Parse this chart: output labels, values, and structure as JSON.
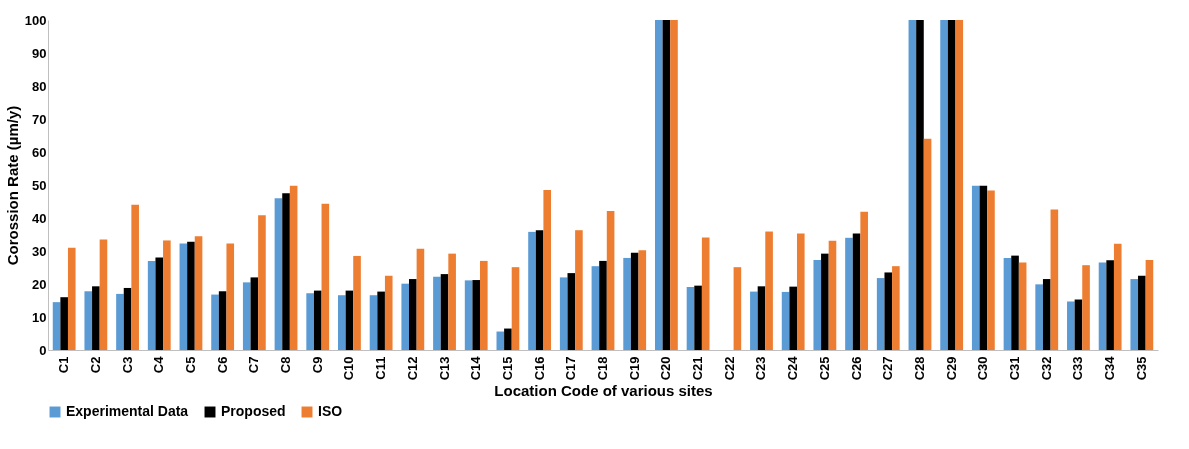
{
  "chart_data": {
    "type": "bar",
    "xlabel": "Location Code of various sites",
    "ylabel": "Corossion Rate (µm/y)",
    "categories": [
      "C1",
      "C2",
      "C3",
      "C4",
      "C5",
      "C6",
      "C7",
      "C8",
      "C9",
      "C10",
      "C11",
      "C12",
      "C13",
      "C14",
      "C15",
      "C16",
      "C17",
      "C18",
      "C19",
      "C20",
      "C21",
      "C22",
      "C23",
      "C24",
      "C25",
      "C26",
      "C27",
      "C28",
      "C29",
      "C30",
      "C31",
      "C32",
      "C33",
      "C34",
      "C35"
    ],
    "series": [
      {
        "name": "Experimental Data",
        "color": "#5b9bd5",
        "values": [
          14.5,
          17.8,
          17,
          27,
          32.3,
          16.8,
          20.5,
          46,
          17.2,
          16.6,
          16.6,
          20.1,
          22.2,
          21.1,
          5.6,
          35.8,
          22,
          25.4,
          27.9,
          100,
          19.1,
          null,
          17.7,
          17.6,
          27.3,
          34,
          21.8,
          100,
          100,
          49.8,
          27.9,
          19.9,
          14.7,
          26.5,
          21.5
        ]
      },
      {
        "name": "Proposed",
        "color": "#000000",
        "values": [
          16,
          19.3,
          18.8,
          28,
          32.8,
          17.8,
          22,
          47.5,
          18,
          18,
          17.7,
          21.5,
          23,
          21.2,
          6.5,
          36.3,
          23.3,
          27,
          29.5,
          100,
          19.5,
          null,
          19.3,
          19.2,
          29.2,
          35.3,
          23.5,
          100,
          100,
          49.8,
          28.6,
          21.5,
          15.3,
          27.2,
          22.5
        ]
      },
      {
        "name": "ISO",
        "color": "#ed7d31",
        "values": [
          31,
          33.5,
          44,
          33.2,
          34.5,
          32.3,
          40.8,
          49.8,
          44.3,
          28.5,
          22.5,
          30.7,
          29.2,
          27,
          25.1,
          48.5,
          36.3,
          42.1,
          30.2,
          100,
          34.1,
          25.1,
          35.9,
          35.3,
          33.1,
          41.9,
          25.4,
          64,
          100,
          48.3,
          26.5,
          42.6,
          25.7,
          32.2,
          27.3
        ]
      }
    ],
    "ylim": [
      0,
      100
    ],
    "yticks": [
      0,
      10,
      20,
      30,
      40,
      50,
      60,
      70,
      80,
      90,
      100
    ],
    "grid": false,
    "legend": "bottom"
  }
}
